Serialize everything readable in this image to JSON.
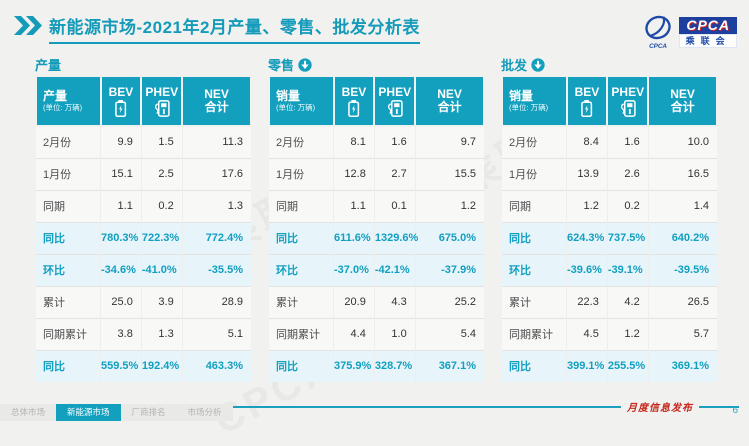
{
  "title": "新能源市场-2021年2月产量、零售、批发分析表",
  "logo": {
    "cpca": "CPCA",
    "association": "乘联会",
    "emblem_caption": "CPCA"
  },
  "watermark": "CPCA乘联会",
  "colors": {
    "teal": "#12a0be",
    "highlight_bg": "#e7f5fa",
    "stamp_red": "#c5281c",
    "logo_navy": "#1d3f9e"
  },
  "tables": [
    {
      "name": "产量",
      "arrow": false,
      "measure_label": "产量",
      "unit": "(单位: 万辆)",
      "columns": [
        "BEV",
        "PHEV",
        "NEV合计"
      ],
      "rows": [
        {
          "label": "2月份",
          "values": [
            "9.9",
            "1.5",
            "11.3"
          ],
          "highlight": false
        },
        {
          "label": "1月份",
          "values": [
            "15.1",
            "2.5",
            "17.6"
          ],
          "highlight": false
        },
        {
          "label": "同期",
          "values": [
            "1.1",
            "0.2",
            "1.3"
          ],
          "highlight": false
        },
        {
          "label": "同比",
          "values": [
            "780.3%",
            "722.3%",
            "772.4%"
          ],
          "highlight": true
        },
        {
          "label": "环比",
          "values": [
            "-34.6%",
            "-41.0%",
            "-35.5%"
          ],
          "highlight": true
        },
        {
          "label": "累计",
          "values": [
            "25.0",
            "3.9",
            "28.9"
          ],
          "highlight": false
        },
        {
          "label": "同期累计",
          "values": [
            "3.8",
            "1.3",
            "5.1"
          ],
          "highlight": false
        },
        {
          "label": "同比",
          "values": [
            "559.5%",
            "192.4%",
            "463.3%"
          ],
          "highlight": true
        }
      ]
    },
    {
      "name": "零售",
      "arrow": true,
      "measure_label": "销量",
      "unit": "(单位: 万辆)",
      "columns": [
        "BEV",
        "PHEV",
        "NEV合计"
      ],
      "rows": [
        {
          "label": "2月份",
          "values": [
            "8.1",
            "1.6",
            "9.7"
          ],
          "highlight": false
        },
        {
          "label": "1月份",
          "values": [
            "12.8",
            "2.7",
            "15.5"
          ],
          "highlight": false
        },
        {
          "label": "同期",
          "values": [
            "1.1",
            "0.1",
            "1.2"
          ],
          "highlight": false
        },
        {
          "label": "同比",
          "values": [
            "611.6%",
            "1329.6%",
            "675.0%"
          ],
          "highlight": true
        },
        {
          "label": "环比",
          "values": [
            "-37.0%",
            "-42.1%",
            "-37.9%"
          ],
          "highlight": true
        },
        {
          "label": "累计",
          "values": [
            "20.9",
            "4.3",
            "25.2"
          ],
          "highlight": false
        },
        {
          "label": "同期累计",
          "values": [
            "4.4",
            "1.0",
            "5.4"
          ],
          "highlight": false
        },
        {
          "label": "同比",
          "values": [
            "375.9%",
            "328.7%",
            "367.1%"
          ],
          "highlight": true
        }
      ]
    },
    {
      "name": "批发",
      "arrow": true,
      "measure_label": "销量",
      "unit": "(单位: 万辆)",
      "columns": [
        "BEV",
        "PHEV",
        "NEV合计"
      ],
      "rows": [
        {
          "label": "2月份",
          "values": [
            "8.4",
            "1.6",
            "10.0"
          ],
          "highlight": false
        },
        {
          "label": "1月份",
          "values": [
            "13.9",
            "2.6",
            "16.5"
          ],
          "highlight": false
        },
        {
          "label": "同期",
          "values": [
            "1.2",
            "0.2",
            "1.4"
          ],
          "highlight": false
        },
        {
          "label": "同比",
          "values": [
            "624.3%",
            "737.5%",
            "640.2%"
          ],
          "highlight": true
        },
        {
          "label": "环比",
          "values": [
            "-39.6%",
            "-39.1%",
            "-39.5%"
          ],
          "highlight": true
        },
        {
          "label": "累计",
          "values": [
            "22.3",
            "4.2",
            "26.5"
          ],
          "highlight": false
        },
        {
          "label": "同期累计",
          "values": [
            "4.5",
            "1.2",
            "5.7"
          ],
          "highlight": false
        },
        {
          "label": "同比",
          "values": [
            "399.1%",
            "255.5%",
            "369.1%"
          ],
          "highlight": true
        }
      ]
    }
  ],
  "footer": {
    "stamp": "月度信息发布",
    "tabs": [
      {
        "label": "总体市场",
        "active": false
      },
      {
        "label": "新能源市场",
        "active": true
      },
      {
        "label": "厂商排名",
        "active": false
      },
      {
        "label": "市场分析",
        "active": false
      }
    ],
    "page_number": "6"
  }
}
